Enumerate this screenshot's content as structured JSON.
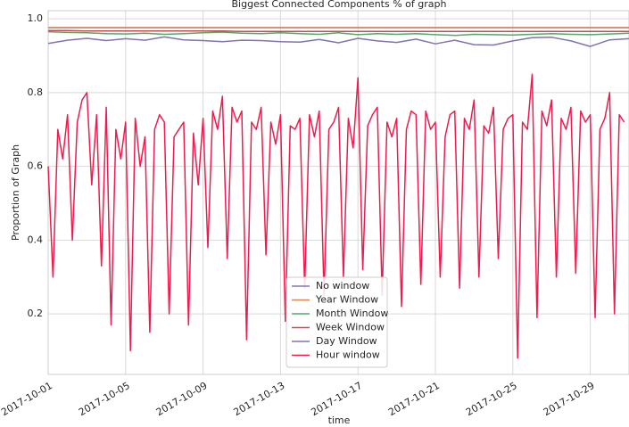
{
  "chart_data": {
    "type": "line",
    "title": "Biggest Connected Components % of graph",
    "xlabel": "time",
    "ylabel": "Proportion of Graph",
    "xlim": [
      "2017-10-01",
      "2017-10-31"
    ],
    "xticks": [
      "2017-10-01",
      "2017-10-05",
      "2017-10-09",
      "2017-10-13",
      "2017-10-17",
      "2017-10-21",
      "2017-10-25",
      "2017-10-29"
    ],
    "ylim": [
      0.036,
      1.022
    ],
    "yticks": [
      0.2,
      0.4,
      0.6,
      0.8,
      {
        "value": 1,
        "label": "1.0"
      }
    ],
    "grid": true,
    "legend": "lower center",
    "x": [
      "2017-10-01",
      "2017-10-02",
      "2017-10-03",
      "2017-10-04",
      "2017-10-05",
      "2017-10-06",
      "2017-10-07",
      "2017-10-08",
      "2017-10-09",
      "2017-10-10",
      "2017-10-11",
      "2017-10-12",
      "2017-10-13",
      "2017-10-14",
      "2017-10-15",
      "2017-10-16",
      "2017-10-17",
      "2017-10-18",
      "2017-10-19",
      "2017-10-20",
      "2017-10-21",
      "2017-10-22",
      "2017-10-23",
      "2017-10-24",
      "2017-10-25",
      "2017-10-26",
      "2017-10-27",
      "2017-10-28",
      "2017-10-29",
      "2017-10-30",
      "2017-10-31"
    ],
    "series": [
      {
        "name": "No window",
        "color": "#7b76c0",
        "values": [
          0.976,
          0.976,
          0.976,
          0.976,
          0.976,
          0.976,
          0.976,
          0.976,
          0.976,
          0.976,
          0.976,
          0.976,
          0.976,
          0.976,
          0.976,
          0.976,
          0.976,
          0.976,
          0.976,
          0.976,
          0.976,
          0.976,
          0.976,
          0.976,
          0.976,
          0.976,
          0.976,
          0.976,
          0.976,
          0.976,
          0.976
        ]
      },
      {
        "name": "Year Window",
        "color": "#dd8452",
        "values": [
          0.976,
          0.976,
          0.976,
          0.976,
          0.976,
          0.976,
          0.976,
          0.976,
          0.976,
          0.976,
          0.976,
          0.976,
          0.976,
          0.976,
          0.976,
          0.976,
          0.976,
          0.976,
          0.976,
          0.976,
          0.976,
          0.976,
          0.976,
          0.976,
          0.976,
          0.976,
          0.976,
          0.976,
          0.976,
          0.976,
          0.976
        ]
      },
      {
        "name": "Month Window",
        "color": "#55a868",
        "values": [
          0.965,
          0.963,
          0.962,
          0.96,
          0.959,
          0.961,
          0.958,
          0.96,
          0.962,
          0.964,
          0.961,
          0.96,
          0.962,
          0.96,
          0.958,
          0.962,
          0.957,
          0.96,
          0.958,
          0.96,
          0.957,
          0.955,
          0.958,
          0.957,
          0.956,
          0.958,
          0.96,
          0.958,
          0.957,
          0.959,
          0.961
        ]
      },
      {
        "name": "Week Window",
        "color": "#c44e52",
        "values": [
          0.968,
          0.968,
          0.967,
          0.967,
          0.967,
          0.967,
          0.967,
          0.967,
          0.967,
          0.967,
          0.966,
          0.966,
          0.966,
          0.966,
          0.966,
          0.966,
          0.966,
          0.966,
          0.966,
          0.966,
          0.966,
          0.966,
          0.966,
          0.966,
          0.966,
          0.966,
          0.966,
          0.966,
          0.966,
          0.966,
          0.966
        ]
      },
      {
        "name": "Day Window",
        "color": "#8172b3",
        "values": [
          0.933,
          0.942,
          0.947,
          0.941,
          0.946,
          0.942,
          0.951,
          0.943,
          0.941,
          0.938,
          0.942,
          0.941,
          0.938,
          0.937,
          0.944,
          0.935,
          0.947,
          0.94,
          0.936,
          0.945,
          0.932,
          0.942,
          0.93,
          0.929,
          0.94,
          0.949,
          0.95,
          0.94,
          0.925,
          0.943,
          0.946
        ]
      },
      {
        "name": "Hour window",
        "color": "#ee1c4e",
        "x": [
          "2017-10-01 00:00",
          "2017-10-01 06:00",
          "2017-10-01 12:00",
          "2017-10-01 18:00",
          "2017-10-02 00:00",
          "2017-10-02 06:00",
          "2017-10-02 12:00",
          "2017-10-02 18:00",
          "2017-10-03 00:00",
          "2017-10-03 06:00",
          "2017-10-03 12:00",
          "2017-10-03 18:00",
          "2017-10-04 00:00",
          "2017-10-04 06:00",
          "2017-10-04 12:00",
          "2017-10-04 18:00",
          "2017-10-05 00:00",
          "2017-10-05 06:00",
          "2017-10-05 12:00",
          "2017-10-05 18:00",
          "2017-10-06 00:00",
          "2017-10-06 06:00",
          "2017-10-06 12:00",
          "2017-10-06 18:00",
          "2017-10-07 00:00",
          "2017-10-07 06:00",
          "2017-10-07 12:00",
          "2017-10-07 18:00",
          "2017-10-08 00:00",
          "2017-10-08 06:00",
          "2017-10-08 12:00",
          "2017-10-08 18:00",
          "2017-10-09 00:00",
          "2017-10-09 06:00",
          "2017-10-09 12:00",
          "2017-10-09 18:00",
          "2017-10-10 00:00",
          "2017-10-10 06:00",
          "2017-10-10 12:00",
          "2017-10-10 18:00",
          "2017-10-11 00:00",
          "2017-10-11 06:00",
          "2017-10-11 12:00",
          "2017-10-11 18:00",
          "2017-10-12 00:00",
          "2017-10-12 06:00",
          "2017-10-12 12:00",
          "2017-10-12 18:00",
          "2017-10-13 00:00",
          "2017-10-13 06:00",
          "2017-10-13 12:00",
          "2017-10-13 18:00",
          "2017-10-14 00:00",
          "2017-10-14 06:00",
          "2017-10-14 12:00",
          "2017-10-14 18:00",
          "2017-10-15 00:00",
          "2017-10-15 06:00",
          "2017-10-15 12:00",
          "2017-10-15 18:00",
          "2017-10-16 00:00",
          "2017-10-16 06:00",
          "2017-10-16 12:00",
          "2017-10-16 18:00",
          "2017-10-17 00:00",
          "2017-10-17 06:00",
          "2017-10-17 12:00",
          "2017-10-17 18:00",
          "2017-10-18 00:00",
          "2017-10-18 06:00",
          "2017-10-18 12:00",
          "2017-10-18 18:00",
          "2017-10-19 00:00",
          "2017-10-19 06:00",
          "2017-10-19 12:00",
          "2017-10-19 18:00",
          "2017-10-20 00:00",
          "2017-10-20 06:00",
          "2017-10-20 12:00",
          "2017-10-20 18:00",
          "2017-10-21 00:00",
          "2017-10-21 06:00",
          "2017-10-21 12:00",
          "2017-10-21 18:00",
          "2017-10-22 00:00",
          "2017-10-22 06:00",
          "2017-10-22 12:00",
          "2017-10-22 18:00",
          "2017-10-23 00:00",
          "2017-10-23 06:00",
          "2017-10-23 12:00",
          "2017-10-23 18:00",
          "2017-10-24 00:00",
          "2017-10-24 06:00",
          "2017-10-24 12:00",
          "2017-10-24 18:00",
          "2017-10-25 00:00",
          "2017-10-25 06:00",
          "2017-10-25 12:00",
          "2017-10-25 18:00",
          "2017-10-26 00:00",
          "2017-10-26 06:00",
          "2017-10-26 12:00",
          "2017-10-26 18:00",
          "2017-10-27 00:00",
          "2017-10-27 06:00",
          "2017-10-27 12:00",
          "2017-10-27 18:00",
          "2017-10-28 00:00",
          "2017-10-28 06:00",
          "2017-10-28 12:00",
          "2017-10-28 18:00",
          "2017-10-29 00:00",
          "2017-10-29 06:00",
          "2017-10-29 12:00",
          "2017-10-29 18:00",
          "2017-10-30 00:00",
          "2017-10-30 06:00",
          "2017-10-30 12:00",
          "2017-10-30 18:00"
        ],
        "values": [
          0.6,
          0.3,
          0.7,
          0.62,
          0.74,
          0.4,
          0.72,
          0.78,
          0.8,
          0.55,
          0.74,
          0.33,
          0.76,
          0.17,
          0.7,
          0.62,
          0.72,
          0.1,
          0.73,
          0.6,
          0.68,
          0.15,
          0.7,
          0.74,
          0.72,
          0.2,
          0.68,
          0.7,
          0.72,
          0.17,
          0.69,
          0.55,
          0.73,
          0.38,
          0.75,
          0.7,
          0.79,
          0.35,
          0.76,
          0.72,
          0.75,
          0.13,
          0.72,
          0.7,
          0.76,
          0.36,
          0.72,
          0.66,
          0.74,
          0.18,
          0.71,
          0.7,
          0.73,
          0.27,
          0.74,
          0.68,
          0.75,
          0.25,
          0.7,
          0.72,
          0.76,
          0.3,
          0.73,
          0.65,
          0.84,
          0.32,
          0.71,
          0.74,
          0.76,
          0.25,
          0.72,
          0.68,
          0.73,
          0.22,
          0.7,
          0.75,
          0.74,
          0.28,
          0.75,
          0.7,
          0.72,
          0.3,
          0.68,
          0.74,
          0.75,
          0.27,
          0.73,
          0.7,
          0.78,
          0.3,
          0.71,
          0.69,
          0.76,
          0.35,
          0.7,
          0.73,
          0.74,
          0.08,
          0.72,
          0.7,
          0.85,
          0.19,
          0.75,
          0.71,
          0.78,
          0.3,
          0.73,
          0.7,
          0.76,
          0.31,
          0.75,
          0.72,
          0.74,
          0.19,
          0.7,
          0.73,
          0.8,
          0.2,
          0.74,
          0.72
        ]
      }
    ]
  }
}
